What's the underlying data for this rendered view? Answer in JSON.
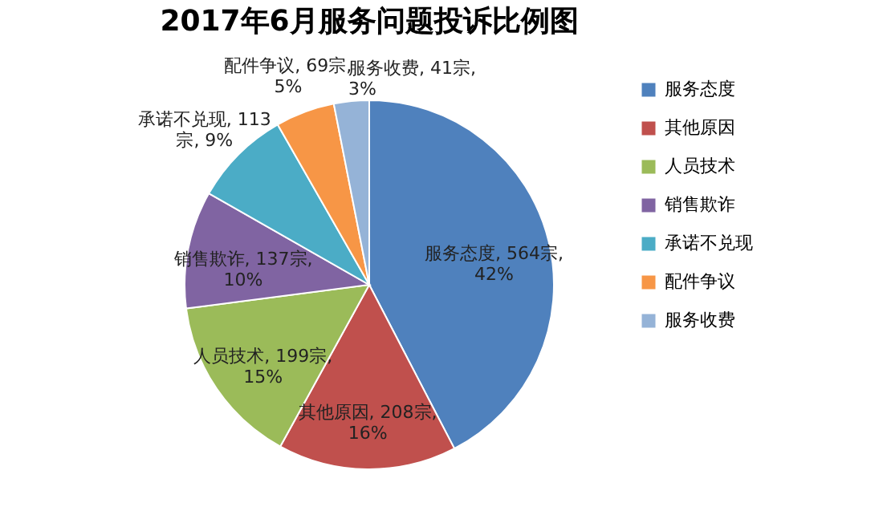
{
  "chart_data": {
    "type": "pie",
    "title": "2017年6月服务问题投诉比例图",
    "categories": [
      "服务态度",
      "其他原因",
      "人员技术",
      "销售欺诈",
      "承诺不兑现",
      "配件争议",
      "服务收费"
    ],
    "values": [
      564,
      208,
      199,
      137,
      113,
      69,
      41
    ],
    "colors": [
      "#4f81bd",
      "#c0504d",
      "#9bbb59",
      "#8064a2",
      "#4bacc6",
      "#f79646",
      "#95b3d7"
    ],
    "value_labels": [
      "服务态度, 564宗,\n42%",
      "其他原因, 208宗,\n16%",
      "人员技术, 199宗,\n15%",
      "销售欺诈, 137宗,\n10%",
      "承诺不兑现, 113\n宗, 9%",
      "配件争议, 69宗,\n5%",
      "服务收费, 41宗,\n3%"
    ],
    "legend": "right"
  }
}
